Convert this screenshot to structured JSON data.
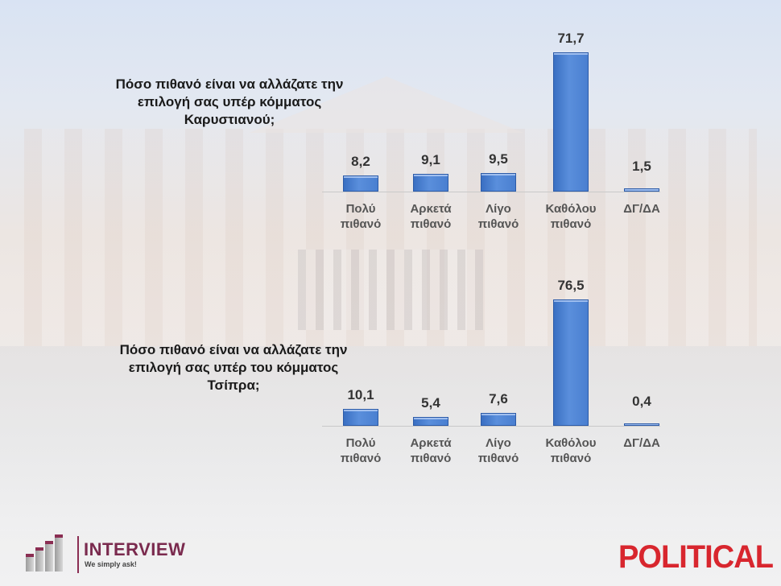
{
  "charts": [
    {
      "question": "Πόσο πιθανό είναι να αλλάζατε την επιλογή σας υπέρ κόμματος Καρυστιανού;",
      "question_lines": [
        "Πόσο πιθανό είναι να αλλάζατε την",
        "επιλογή σας υπέρ κόμματος",
        "Καρυστιανού;"
      ],
      "labels": [
        "8,2",
        "9,1",
        "9,5",
        "71,7",
        "1,5"
      ]
    },
    {
      "question": "Πόσο πιθανό είναι να αλλάζατε την επιλογή σας υπέρ του κόμματος Τσίπρα;",
      "question_lines": [
        "Πόσο πιθανό είναι να αλλάζατε την",
        "επιλογή σας υπέρ του κόμματος",
        "Τσίπρα;"
      ],
      "labels": [
        "10,1",
        "5,4",
        "7,6",
        "76,5",
        "0,4"
      ]
    }
  ],
  "categories": [
    {
      "line1": "Πολύ",
      "line2": "πιθανό"
    },
    {
      "line1": "Αρκετά",
      "line2": "πιθανό"
    },
    {
      "line1": "Λίγο",
      "line2": "πιθανό"
    },
    {
      "line1": "Καθόλου",
      "line2": "πιθανό"
    },
    {
      "line1": "ΔΓ/ΔΑ",
      "line2": ""
    }
  ],
  "logos": {
    "left_name": "INTERVIEW",
    "left_tagline": "We simply ask!",
    "right_name": "POLITICAL"
  },
  "colors": {
    "bar": "#4a7fd0",
    "brand_interview": "#7a2a4e",
    "brand_political": "#d8262e"
  },
  "chart_data": [
    {
      "type": "bar",
      "title": "Πόσο πιθανό είναι να αλλάζατε την επιλογή σας υπέρ κόμματος Καρυστιανού;",
      "categories": [
        "Πολύ πιθανό",
        "Αρκετά πιθανό",
        "Λίγο πιθανό",
        "Καθόλου πιθανό",
        "ΔΓ/ΔΑ"
      ],
      "values": [
        8.2,
        9.1,
        9.5,
        71.7,
        1.5
      ],
      "xlabel": "",
      "ylabel": "",
      "ylim": [
        0,
        75
      ],
      "grid": false,
      "legend": null,
      "data_labels": true
    },
    {
      "type": "bar",
      "title": "Πόσο πιθανό είναι να αλλάζατε την επιλογή σας υπέρ του κόμματος Τσίπρα;",
      "categories": [
        "Πολύ πιθανό",
        "Αρκετά πιθανό",
        "Λίγο πιθανό",
        "Καθόλου πιθανό",
        "ΔΓ/ΔΑ"
      ],
      "values": [
        10.1,
        5.4,
        7.6,
        76.5,
        0.4
      ],
      "xlabel": "",
      "ylabel": "",
      "ylim": [
        0,
        80
      ],
      "grid": false,
      "legend": null,
      "data_labels": true
    }
  ]
}
